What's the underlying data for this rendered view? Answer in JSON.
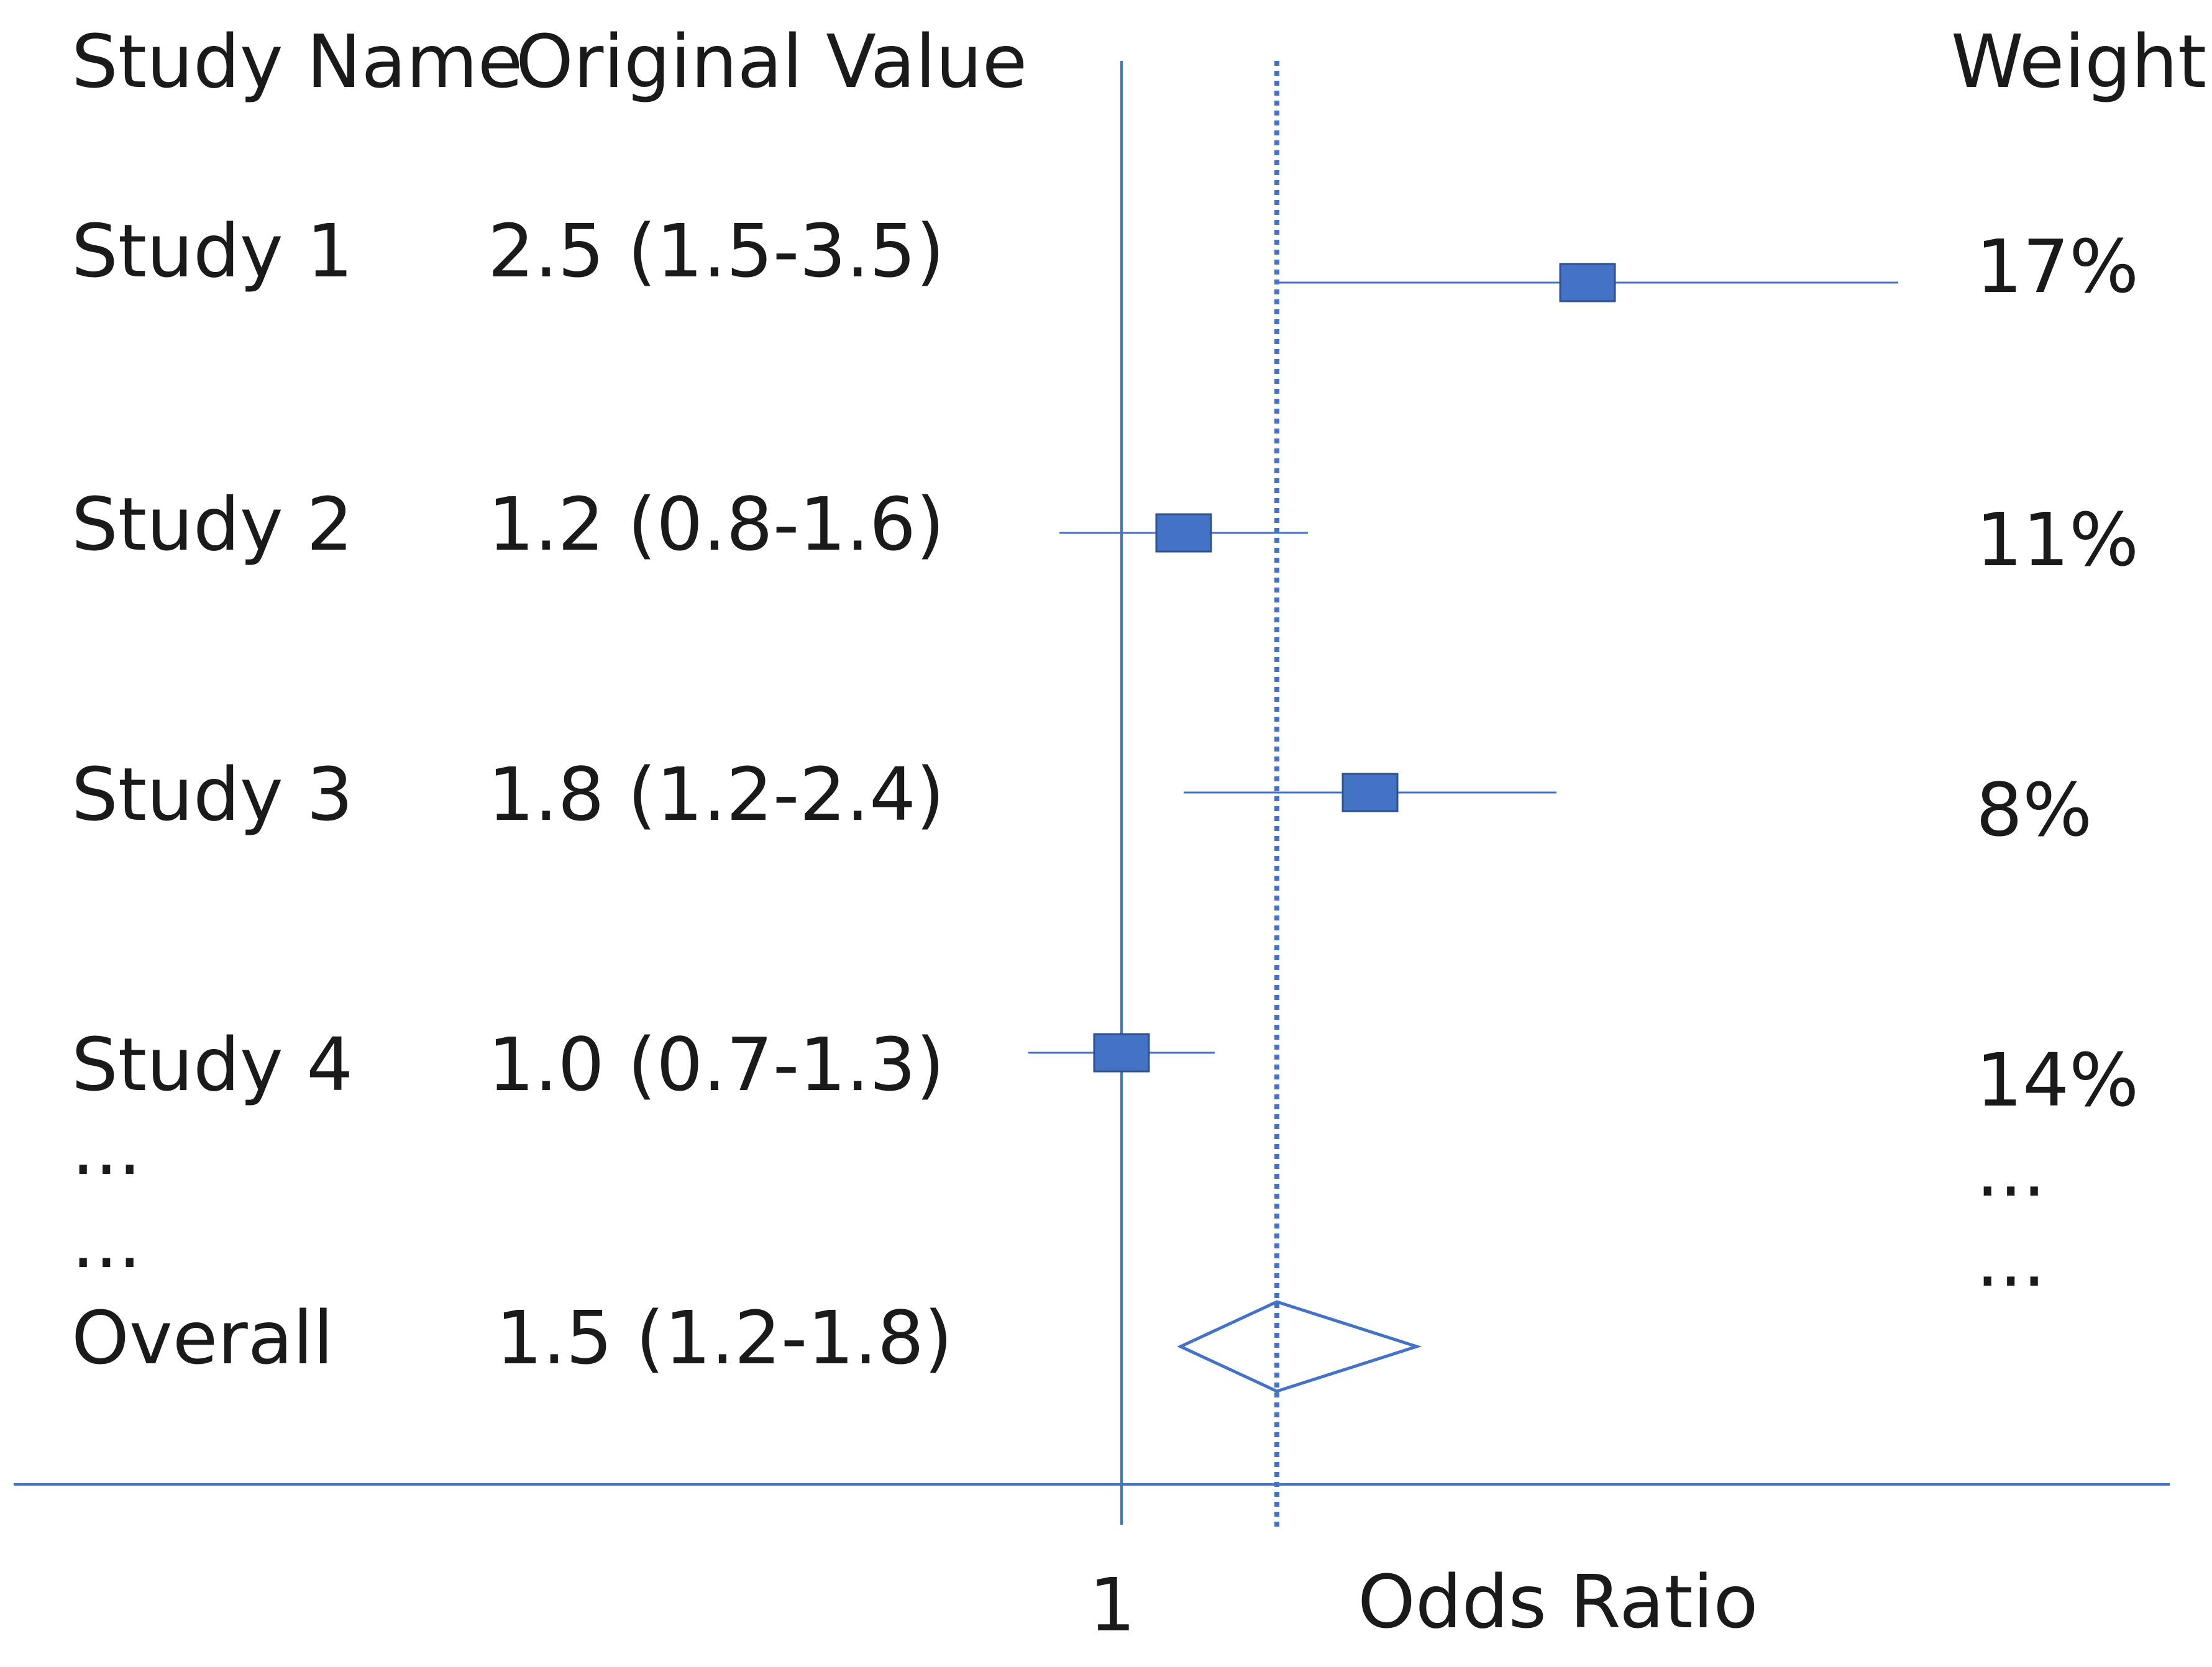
{
  "chart_data": {
    "type": "forest",
    "headers": {
      "study_name": "Study Name",
      "original_value": "Original Value",
      "weight": "Weight"
    },
    "rows": [
      {
        "name": "Study 1",
        "value_text": "2.5 (1.5-3.5)",
        "estimate": 2.5,
        "ci_low": 1.5,
        "ci_high": 3.5,
        "weight_text": "17%",
        "weight": 17
      },
      {
        "name": "Study 2",
        "value_text": "1.2 (0.8-1.6)",
        "estimate": 1.2,
        "ci_low": 0.8,
        "ci_high": 1.6,
        "weight_text": "11%",
        "weight": 11
      },
      {
        "name": "Study 3",
        "value_text": "1.8 (1.2-2.4)",
        "estimate": 1.8,
        "ci_low": 1.2,
        "ci_high": 2.4,
        "weight_text": "8%",
        "weight": 8
      },
      {
        "name": "Study 4",
        "value_text": "1.0 (0.7-1.3)",
        "estimate": 1.0,
        "ci_low": 0.7,
        "ci_high": 1.3,
        "weight_text": "14%",
        "weight": 14
      }
    ],
    "ellipsis": [
      "...",
      "..."
    ],
    "weight_ellipsis": [
      "...",
      "..."
    ],
    "overall": {
      "name": "Overall",
      "value_text": "1.5 (1.2-1.8)",
      "estimate": 1.5,
      "ci_low": 1.2,
      "ci_high": 1.8
    },
    "null_line": 1,
    "null_line_label": "1",
    "xlabel": "Odds Ratio",
    "colors": {
      "marker": "#4472c4",
      "line": "#4472c4",
      "text": "#1a1a1a"
    }
  }
}
